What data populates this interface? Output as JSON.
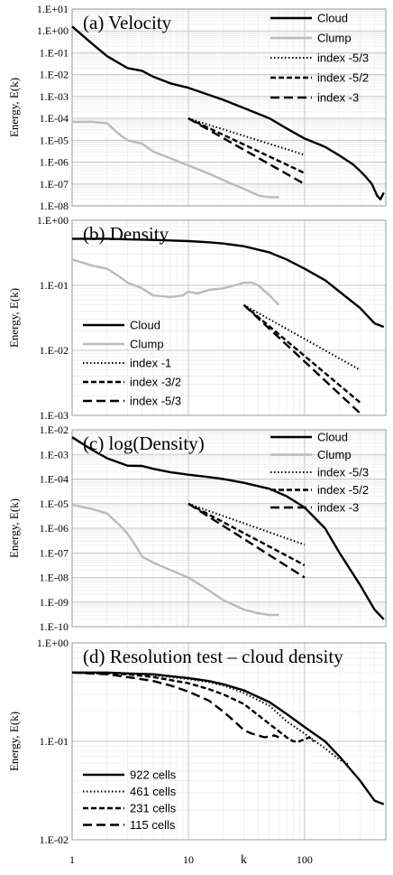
{
  "chart_data": [
    {
      "type": "line",
      "title": "(a) Velocity",
      "xlabel": "",
      "ylabel": "Energy, E(k)",
      "xscale": "log",
      "yscale": "log",
      "xlim": [
        1,
        500
      ],
      "ylim": [
        1e-08,
        10
      ],
      "yticks": [
        "1.E-08",
        "1.E-07",
        "1.E-06",
        "1.E-05",
        "1.E-04",
        "1.E-03",
        "1.E-02",
        "1.E-01",
        "1.E+00",
        "1.E+01"
      ],
      "legend_position": "top-right",
      "series": [
        {
          "name": "Cloud",
          "style": "solid-thick",
          "color": "#000000",
          "x": [
            1,
            1.5,
            2,
            3,
            4,
            5,
            7,
            10,
            15,
            20,
            30,
            50,
            70,
            100,
            150,
            200,
            260,
            300,
            340,
            380,
            420,
            450,
            480
          ],
          "y": [
            1.6,
            0.25,
            0.07,
            0.02,
            0.015,
            0.008,
            0.004,
            0.0025,
            0.0012,
            0.0007,
            0.0003,
            0.0001,
            3.5e-05,
            1.2e-05,
            5e-06,
            2e-06,
            8e-07,
            4e-07,
            2e-07,
            1e-07,
            3e-08,
            2e-08,
            4e-08
          ]
        },
        {
          "name": "Clump",
          "style": "solid-gray",
          "color": "#bbbbbb",
          "x": [
            1,
            1.5,
            2,
            2.5,
            3,
            4,
            5,
            7,
            10,
            15,
            20,
            30,
            40,
            50,
            60
          ],
          "y": [
            7e-05,
            7e-05,
            6e-05,
            2e-05,
            1e-05,
            7e-06,
            3e-06,
            1.5e-06,
            7e-07,
            3e-07,
            1.5e-07,
            6e-08,
            3e-08,
            2.5e-08,
            2.5e-08
          ]
        },
        {
          "name": "index -5/3",
          "style": "dotted",
          "color": "#000000",
          "x": [
            10,
            100
          ],
          "y": [
            0.0001,
            2.15e-06
          ]
        },
        {
          "name": "index -5/2",
          "style": "dashed",
          "color": "#000000",
          "x": [
            10,
            100
          ],
          "y": [
            0.0001,
            3.16e-07
          ]
        },
        {
          "name": "index -3",
          "style": "longdash",
          "color": "#000000",
          "x": [
            10,
            100
          ],
          "y": [
            0.0001,
            1e-07
          ]
        }
      ]
    },
    {
      "type": "line",
      "title": "(b) Density",
      "xlabel": "",
      "ylabel": "Energy, E(k)",
      "xscale": "log",
      "yscale": "log",
      "xlim": [
        1,
        500
      ],
      "ylim": [
        0.001,
        1
      ],
      "yticks": [
        "1.E-03",
        "1.E-02",
        "1.E-01",
        "1.E+00"
      ],
      "legend_position": "bottom-left",
      "series": [
        {
          "name": "Cloud",
          "style": "solid-thick",
          "color": "#000000",
          "x": [
            1,
            2,
            3,
            5,
            7,
            10,
            15,
            20,
            30,
            50,
            70,
            100,
            150,
            200,
            300,
            400,
            480
          ],
          "y": [
            0.52,
            0.52,
            0.51,
            0.5,
            0.49,
            0.48,
            0.46,
            0.44,
            0.4,
            0.32,
            0.25,
            0.18,
            0.12,
            0.08,
            0.045,
            0.026,
            0.023
          ]
        },
        {
          "name": "Clump",
          "style": "solid-gray",
          "color": "#bbbbbb",
          "x": [
            1,
            1.5,
            2,
            2.5,
            3,
            4,
            5,
            6,
            7,
            8,
            9,
            10,
            12,
            15,
            20,
            25,
            30,
            35,
            40,
            50,
            60
          ],
          "y": [
            0.25,
            0.2,
            0.18,
            0.14,
            0.11,
            0.09,
            0.07,
            0.068,
            0.066,
            0.068,
            0.07,
            0.08,
            0.075,
            0.085,
            0.09,
            0.1,
            0.11,
            0.11,
            0.1,
            0.07,
            0.05
          ]
        },
        {
          "name": "index -1",
          "style": "dotted",
          "color": "#000000",
          "x": [
            30,
            300
          ],
          "y": [
            0.05,
            0.005
          ]
        },
        {
          "name": "index -3/2",
          "style": "dashed",
          "color": "#000000",
          "x": [
            30,
            300
          ],
          "y": [
            0.05,
            0.00158
          ]
        },
        {
          "name": "index -5/3",
          "style": "longdash",
          "color": "#000000",
          "x": [
            30,
            300
          ],
          "y": [
            0.05,
            0.00108
          ]
        }
      ]
    },
    {
      "type": "line",
      "title": "(c) log(Density)",
      "xlabel": "",
      "ylabel": "Energy, E(k)",
      "xscale": "log",
      "yscale": "log",
      "xlim": [
        1,
        500
      ],
      "ylim": [
        1e-10,
        0.01
      ],
      "yticks": [
        "1.E-10",
        "1.E-09",
        "1.E-08",
        "1.E-07",
        "1.E-06",
        "1.E-05",
        "1.E-04",
        "1.E-03",
        "1.E-02"
      ],
      "legend_position": "top-right",
      "series": [
        {
          "name": "Cloud",
          "style": "solid-thick",
          "color": "#000000",
          "x": [
            1,
            1.5,
            2,
            3,
            4,
            5,
            7,
            10,
            15,
            20,
            30,
            50,
            70,
            100,
            150,
            200,
            300,
            400,
            480
          ],
          "y": [
            0.005,
            0.0015,
            0.0007,
            0.00035,
            0.00034,
            0.00026,
            0.00019,
            0.00015,
            0.00012,
            0.0001,
            7e-05,
            4e-05,
            2e-05,
            7e-06,
            1e-06,
            1e-07,
            5e-09,
            5e-10,
            2e-10
          ]
        },
        {
          "name": "Clump",
          "style": "solid-gray",
          "color": "#bbbbbb",
          "x": [
            1,
            1.5,
            2,
            2.5,
            3,
            3.5,
            4,
            5,
            7,
            10,
            15,
            20,
            30,
            40,
            50,
            60
          ],
          "y": [
            9e-06,
            6e-06,
            4e-06,
            1.5e-06,
            6e-07,
            2e-07,
            7e-08,
            4e-08,
            2e-08,
            1e-08,
            3e-09,
            1.2e-09,
            5e-10,
            3.5e-10,
            3e-10,
            3e-10
          ]
        },
        {
          "name": "index -5/3",
          "style": "dotted",
          "color": "#000000",
          "x": [
            10,
            100
          ],
          "y": [
            1e-05,
            2.15e-07
          ]
        },
        {
          "name": "index -5/2",
          "style": "dashed",
          "color": "#000000",
          "x": [
            10,
            100
          ],
          "y": [
            1e-05,
            3.16e-08
          ]
        },
        {
          "name": "index -3",
          "style": "longdash",
          "color": "#000000",
          "x": [
            10,
            100
          ],
          "y": [
            1e-05,
            1e-08
          ]
        }
      ]
    },
    {
      "type": "line",
      "title": "(d) Resolution test – cloud density",
      "xlabel": "k",
      "ylabel": "Energy, E(k)",
      "xscale": "log",
      "yscale": "log",
      "xlim": [
        1,
        500
      ],
      "ylim": [
        0.01,
        1
      ],
      "yticks": [
        "1.E-02",
        "1.E-01",
        "1.E+00"
      ],
      "xticks": [
        "1",
        "10",
        "100"
      ],
      "legend_position": "bottom-left",
      "series": [
        {
          "name": "922 cells",
          "style": "solid-thick",
          "color": "#000000",
          "x": [
            1,
            2,
            3,
            5,
            7,
            10,
            15,
            20,
            30,
            50,
            70,
            100,
            150,
            200,
            300,
            400,
            480
          ],
          "y": [
            0.5,
            0.5,
            0.49,
            0.48,
            0.46,
            0.44,
            0.41,
            0.38,
            0.33,
            0.25,
            0.19,
            0.14,
            0.1,
            0.07,
            0.04,
            0.025,
            0.023
          ]
        },
        {
          "name": "461 cells",
          "style": "dotted",
          "color": "#000000",
          "x": [
            1,
            2,
            3,
            5,
            7,
            10,
            15,
            20,
            30,
            50,
            70,
            100,
            150,
            200,
            240
          ],
          "y": [
            0.5,
            0.5,
            0.49,
            0.47,
            0.45,
            0.43,
            0.4,
            0.37,
            0.31,
            0.23,
            0.16,
            0.12,
            0.085,
            0.065,
            0.058
          ]
        },
        {
          "name": "231 cells",
          "style": "dashed",
          "color": "#000000",
          "x": [
            1,
            2,
            3,
            5,
            7,
            10,
            15,
            20,
            30,
            50,
            70,
            80,
            90,
            100,
            110,
            120
          ],
          "y": [
            0.5,
            0.49,
            0.48,
            0.45,
            0.42,
            0.39,
            0.34,
            0.3,
            0.24,
            0.15,
            0.11,
            0.1,
            0.1,
            0.105,
            0.11,
            0.1
          ]
        },
        {
          "name": "115 cells",
          "style": "longdash",
          "color": "#000000",
          "x": [
            1,
            2,
            3,
            5,
            7,
            10,
            15,
            20,
            25,
            30,
            35,
            40,
            45,
            50,
            55,
            60
          ],
          "y": [
            0.5,
            0.48,
            0.45,
            0.41,
            0.37,
            0.32,
            0.26,
            0.2,
            0.16,
            0.13,
            0.12,
            0.115,
            0.11,
            0.112,
            0.115,
            0.11
          ]
        }
      ]
    }
  ]
}
